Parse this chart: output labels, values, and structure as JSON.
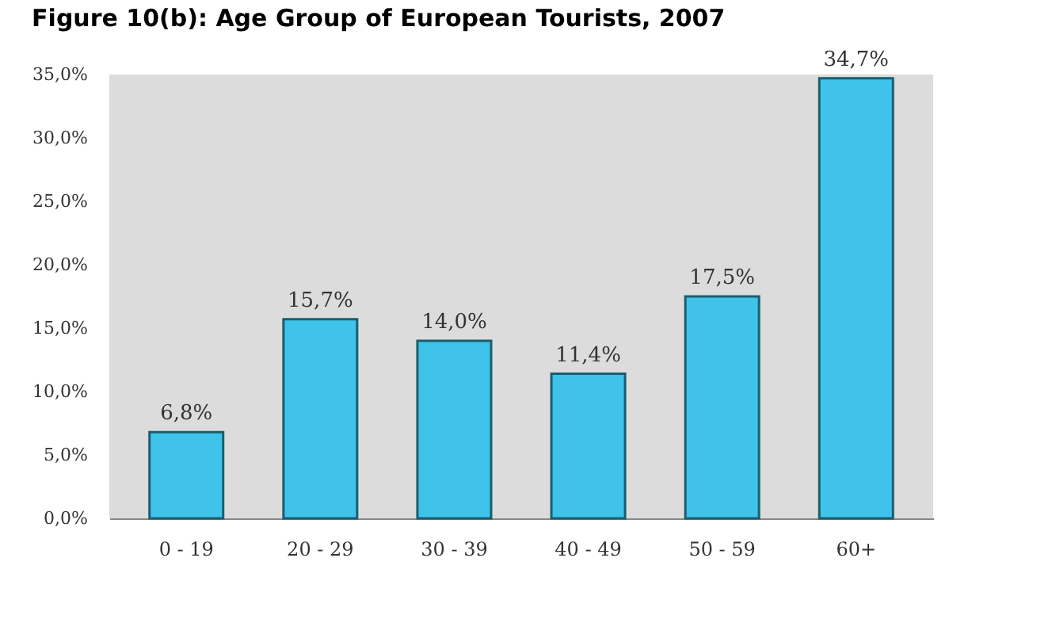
{
  "chart_data": {
    "type": "bar",
    "title": "Figure 10(b): Age Group of European Tourists, 2007",
    "categories": [
      "0 - 19",
      "20 - 29",
      "30 - 39",
      "40 - 49",
      "50 - 59",
      "60+"
    ],
    "values": [
      6.8,
      15.7,
      14.0,
      11.4,
      17.5,
      34.7
    ],
    "value_labels": [
      "6,8%",
      "15,7%",
      "14,0%",
      "11,4%",
      "17,5%",
      "34,7%"
    ],
    "color": "#3fc3ea",
    "ylim": [
      0,
      35
    ],
    "yticks": [
      {
        "value": 0,
        "label": "0,0%"
      },
      {
        "value": 5,
        "label": "5,0%"
      },
      {
        "value": 10,
        "label": "10,0%"
      },
      {
        "value": 15,
        "label": "15,0%"
      },
      {
        "value": 20,
        "label": "20,0%"
      },
      {
        "value": 25,
        "label": "25,0%"
      },
      {
        "value": 30,
        "label": "30,0%"
      },
      {
        "value": 35,
        "label": "35,0%"
      }
    ],
    "grid": false
  }
}
